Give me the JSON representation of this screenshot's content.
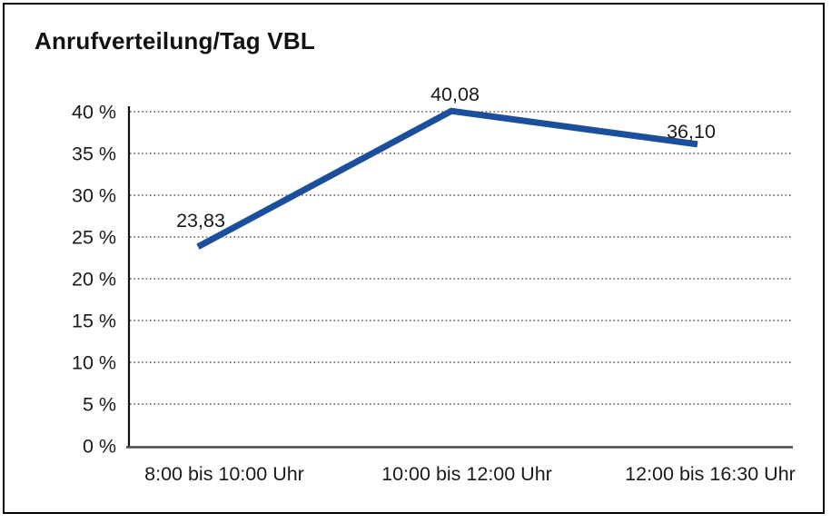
{
  "chart_data": {
    "type": "line",
    "title": "Anrufverteilung/Tag VBL",
    "categories": [
      "8:00 bis 10:00 Uhr",
      "10:00 bis 12:00 Uhr",
      "12:00 bis 16:30 Uhr"
    ],
    "values": [
      23.83,
      40.08,
      36.1
    ],
    "point_labels": [
      "23,83",
      "40,08",
      "36,10"
    ],
    "xlabel": "",
    "ylabel": "",
    "ylim": [
      0,
      40
    ],
    "ytick_step": 5,
    "ytick_labels": [
      "0 %",
      "5 %",
      "10 %",
      "15 %",
      "20 %",
      "25 %",
      "30 %",
      "35 %",
      "40 %"
    ],
    "grid": "horizontal-dotted",
    "legend_position": "none",
    "series_name": "Anrufverteilung",
    "colors": {
      "line": "#1B4F9C",
      "text": "#1a1a1a",
      "grid": "#3c3c3c",
      "y_axis": "#111111",
      "x_axis": "#4a4a4a",
      "frame_border": "#000000",
      "background": "#ffffff"
    }
  }
}
